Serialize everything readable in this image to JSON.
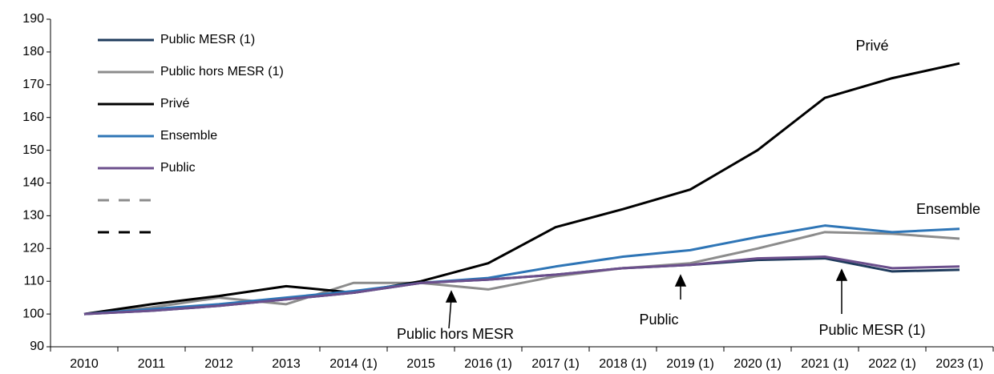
{
  "chart_data": {
    "type": "line",
    "categories": [
      "2010",
      "2011",
      "2012",
      "2013",
      "2014 (1)",
      "2015",
      "2016 (1)",
      "2017 (1)",
      "2018 (1)",
      "2019 (1)",
      "2020 (1)",
      "2021 (1)",
      "2022 (1)",
      "2023 (1)"
    ],
    "series": [
      {
        "name": "Public MESR (1)",
        "color": "#1f3b5c",
        "values": [
          100,
          101,
          102.5,
          104.5,
          106.5,
          109.5,
          110.5,
          112,
          114,
          115,
          116.5,
          117,
          113,
          113.5
        ]
      },
      {
        "name": "Public hors MESR (1)",
        "color": "#8c8c8c",
        "values": [
          100,
          102,
          105,
          103,
          109.5,
          109.5,
          107.5,
          111.5,
          114,
          115.5,
          120,
          125,
          124.5,
          123
        ]
      },
      {
        "name": "Privé",
        "color": "#000000",
        "values": [
          100,
          103,
          105.5,
          108.5,
          106.5,
          110,
          115.5,
          126.5,
          132,
          138,
          150,
          166,
          172,
          176.5
        ]
      },
      {
        "name": "Ensemble",
        "color": "#2e75b6",
        "values": [
          100,
          101.5,
          103,
          105,
          107,
          109.5,
          111,
          114.5,
          117.5,
          119.5,
          123.5,
          127,
          125,
          126
        ]
      },
      {
        "name": "Public",
        "color": "#6b4f8c",
        "values": [
          100,
          101,
          102.5,
          104.5,
          106.5,
          109.5,
          110.5,
          112,
          114,
          115,
          117,
          117.5,
          114,
          114.5
        ]
      }
    ],
    "annotations": [
      "Privé",
      "Ensemble",
      "Public hors MESR",
      "Public",
      "Public MESR (1)"
    ],
    "ylim": [
      90,
      190
    ],
    "yticks": [
      90,
      100,
      110,
      120,
      130,
      140,
      150,
      160,
      170,
      180,
      190
    ],
    "grid": false
  }
}
